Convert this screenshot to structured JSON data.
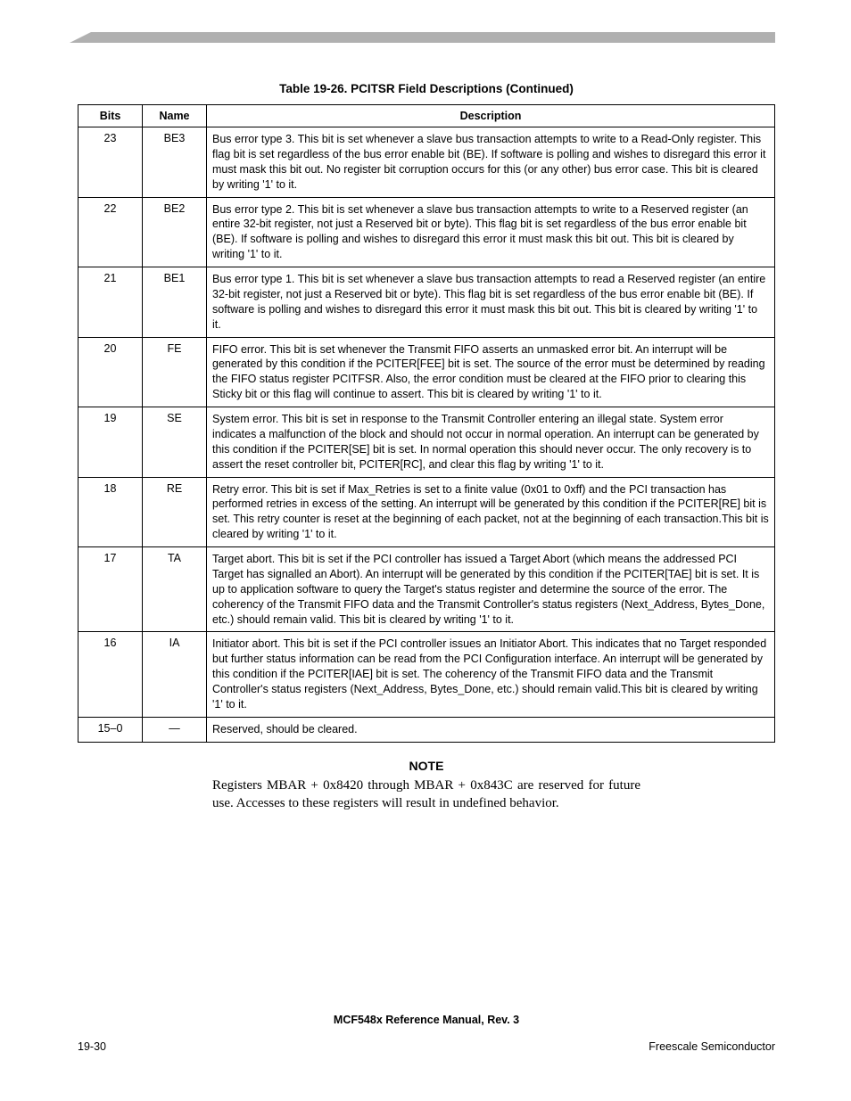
{
  "header_bar": {
    "color": "#b0b0b0"
  },
  "table": {
    "title": "Table 19-26. PCITSR Field Descriptions (Continued)",
    "columns": [
      "Bits",
      "Name",
      "Description"
    ],
    "rows": [
      {
        "bits": "23",
        "name": "BE3",
        "desc": "Bus error type 3. This bit is set whenever a slave bus transaction attempts to write to a Read-Only register. This flag bit is set regardless of the bus error enable bit (BE). If software is polling and wishes to disregard this error it must mask this bit out. No register bit corruption occurs for this (or any other) bus error case. This bit is cleared by writing '1' to it."
      },
      {
        "bits": "22",
        "name": "BE2",
        "desc": "Bus error type 2. This bit is set whenever a slave bus transaction attempts to write to a Reserved register (an entire 32-bit register, not just a Reserved bit or byte). This flag bit is set regardless of the bus error enable bit (BE). If software is polling and wishes to disregard this error it must mask this bit out. This bit is cleared by writing '1' to it."
      },
      {
        "bits": "21",
        "name": "BE1",
        "desc": "Bus error type 1. This bit is set whenever a slave bus transaction attempts to read a Reserved register (an entire 32-bit register, not just a Reserved bit or byte). This flag bit is set regardless of the bus error enable bit (BE). If software is polling and wishes to disregard this error it must mask this bit out. This bit is cleared by writing '1' to it."
      },
      {
        "bits": "20",
        "name": "FE",
        "desc": "FIFO error. This bit is set whenever the Transmit FIFO asserts an unmasked error bit. An interrupt will be generated by this condition if the PCITER[FEE] bit is set. The source of the error must be determined by reading the FIFO status register PCITFSR. Also, the error condition must be cleared at the FIFO prior to clearing this Sticky bit or this flag will continue to assert. This bit is cleared by writing '1' to it."
      },
      {
        "bits": "19",
        "name": "SE",
        "desc": "System error. This bit is set in response to the Transmit Controller entering an illegal state. System error indicates a malfunction of the block and should not occur in normal operation. An interrupt can be generated by this condition if the PCITER[SE] bit is set. In normal operation this should never occur. The only recovery is to assert the reset controller bit, PCITER[RC], and clear this flag by writing '1' to it."
      },
      {
        "bits": "18",
        "name": "RE",
        "desc": "Retry error. This bit is set if Max_Retries is set to a finite value (0x01 to 0xff) and the PCI transaction has performed retries in excess of the setting. An interrupt will be generated by this condition if the PCITER[RE] bit is set. This retry counter is reset at the beginning of each packet, not at the beginning of each transaction.This bit is cleared by writing '1' to it."
      },
      {
        "bits": "17",
        "name": "TA",
        "desc": "Target abort. This bit is set if the PCI controller has issued a Target Abort (which means the addressed PCI Target has signalled an Abort). An interrupt will be generated by this condition if the PCITER[TAE] bit is set. It is up to application software to query the Target's status register and determine the source of the error. The coherency of the Transmit FIFO data and the Transmit Controller's status registers (Next_Address, Bytes_Done, etc.) should remain valid. This bit is cleared by writing '1' to it."
      },
      {
        "bits": "16",
        "name": "IA",
        "desc": "Initiator abort. This bit is set if the PCI controller issues an Initiator Abort. This indicates that no Target responded but further status information can be read from the PCI Configuration interface. An interrupt will be generated by this condition if the PCITER[IAE] bit is set. The coherency of the Transmit FIFO data and the Transmit Controller's status registers (Next_Address, Bytes_Done, etc.) should remain valid.This bit is cleared by writing '1' to it."
      },
      {
        "bits": "15–0",
        "name": "—",
        "desc": "Reserved, should be cleared."
      }
    ]
  },
  "note": {
    "heading": "NOTE",
    "text": "Registers MBAR + 0x8420 through MBAR + 0x843C are reserved for future use. Accesses to these registers will result in undefined behavior."
  },
  "footer": {
    "title": "MCF548x Reference Manual, Rev. 3",
    "page": "19-30",
    "vendor": "Freescale Semiconductor"
  }
}
